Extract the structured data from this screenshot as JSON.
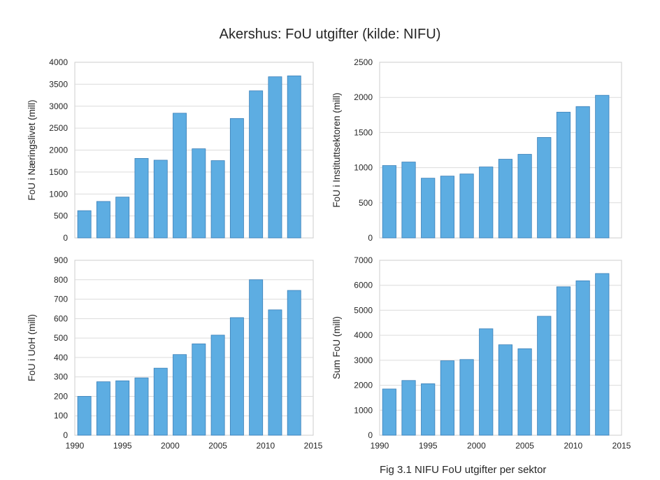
{
  "figure": {
    "title": "Akershus: FoU utgifter (kilde: NIFU)",
    "caption": "Fig 3.1 NIFU FoU utgifter per sektor"
  },
  "colors": {
    "bar": "#5dade2",
    "bar_edge": "#3a7fb8",
    "frame": "#cccccc",
    "grid": "#dcdcdc"
  },
  "chart_data": [
    {
      "type": "bar",
      "ylabel": "FoU i Næringslivet (mill)",
      "x": [
        1991,
        1993,
        1995,
        1997,
        1999,
        2001,
        2003,
        2005,
        2007,
        2009,
        2011,
        2013
      ],
      "values": [
        620,
        830,
        930,
        1810,
        1770,
        2840,
        2030,
        1760,
        2720,
        3350,
        3670,
        3690
      ],
      "xlim": [
        1990,
        2015
      ],
      "ylim": [
        0,
        4000
      ],
      "yticks": [
        0,
        500,
        1000,
        1500,
        2000,
        2500,
        3000,
        3500,
        4000
      ],
      "xticks": [],
      "grid": true
    },
    {
      "type": "bar",
      "ylabel": "FoU i Instituttsektoren (mill)",
      "x": [
        1991,
        1993,
        1995,
        1997,
        1999,
        2001,
        2003,
        2005,
        2007,
        2009,
        2011,
        2013
      ],
      "values": [
        1030,
        1080,
        850,
        880,
        910,
        1010,
        1120,
        1190,
        1430,
        1790,
        1870,
        2030
      ],
      "xlim": [
        1990,
        2015
      ],
      "ylim": [
        0,
        2500
      ],
      "yticks": [
        0,
        500,
        1000,
        1500,
        2000,
        2500
      ],
      "xticks": [],
      "grid": true
    },
    {
      "type": "bar",
      "ylabel": "FoU i UoH (mill)",
      "x": [
        1991,
        1993,
        1995,
        1997,
        1999,
        2001,
        2003,
        2005,
        2007,
        2009,
        2011,
        2013
      ],
      "values": [
        200,
        275,
        280,
        295,
        345,
        415,
        470,
        515,
        605,
        800,
        645,
        745
      ],
      "xlim": [
        1990,
        2015
      ],
      "ylim": [
        0,
        900
      ],
      "yticks": [
        0,
        100,
        200,
        300,
        400,
        500,
        600,
        700,
        800,
        900
      ],
      "xticks": [
        1990,
        1995,
        2000,
        2005,
        2010,
        2015
      ],
      "grid": true
    },
    {
      "type": "bar",
      "ylabel": "Sum FoU (mill)",
      "x": [
        1991,
        1993,
        1995,
        1997,
        1999,
        2001,
        2003,
        2005,
        2007,
        2009,
        2011,
        2013
      ],
      "values": [
        1850,
        2190,
        2060,
        2980,
        3030,
        4260,
        3620,
        3460,
        4760,
        5940,
        6180,
        6470
      ],
      "xlim": [
        1990,
        2015
      ],
      "ylim": [
        0,
        7000
      ],
      "yticks": [
        0,
        1000,
        2000,
        3000,
        4000,
        5000,
        6000,
        7000
      ],
      "xticks": [
        1990,
        1995,
        2000,
        2005,
        2010,
        2015
      ],
      "grid": true
    }
  ]
}
